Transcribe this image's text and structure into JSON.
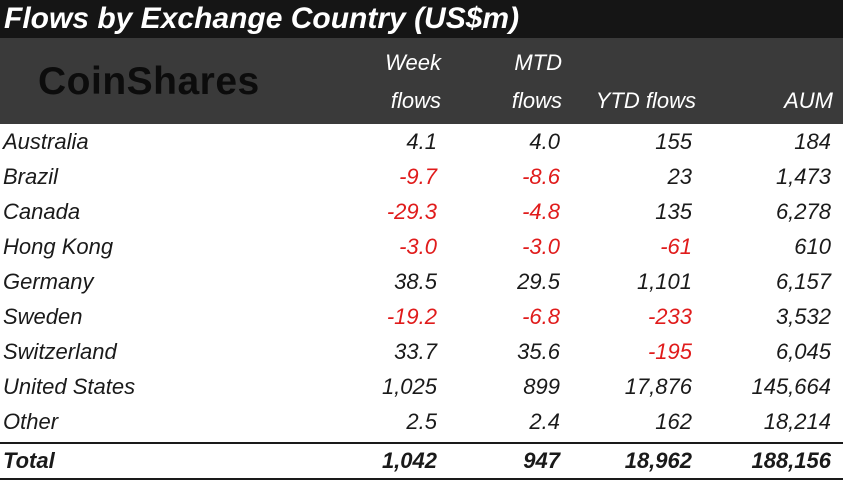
{
  "title": "Flows by Exchange Country (US$m)",
  "logo_text": "CoinShares",
  "colors": {
    "title_bg": "#151515",
    "header_bg": "#3a3a3a",
    "negative": "#e01b1b"
  },
  "headers": {
    "week_line1": "Week",
    "week_line2": "flows",
    "mtd_line1": "MTD",
    "mtd_line2": "flows",
    "ytd": "YTD flows",
    "aum": "AUM"
  },
  "rows": [
    {
      "country": "Australia",
      "week": "4.1",
      "mtd": "4.0",
      "ytd": "155",
      "aum": "184"
    },
    {
      "country": "Brazil",
      "week": "-9.7",
      "mtd": "-8.6",
      "ytd": "23",
      "aum": "1,473"
    },
    {
      "country": "Canada",
      "week": "-29.3",
      "mtd": "-4.8",
      "ytd": "135",
      "aum": "6,278"
    },
    {
      "country": "Hong Kong",
      "week": "-3.0",
      "mtd": "-3.0",
      "ytd": "-61",
      "aum": "610"
    },
    {
      "country": "Germany",
      "week": "38.5",
      "mtd": "29.5",
      "ytd": "1,101",
      "aum": "6,157"
    },
    {
      "country": "Sweden",
      "week": "-19.2",
      "mtd": "-6.8",
      "ytd": "-233",
      "aum": "3,532"
    },
    {
      "country": "Switzerland",
      "week": "33.7",
      "mtd": "35.6",
      "ytd": "-195",
      "aum": "6,045"
    },
    {
      "country": "United States",
      "week": "1,025",
      "mtd": "899",
      "ytd": "17,876",
      "aum": "145,664"
    },
    {
      "country": "Other",
      "week": "2.5",
      "mtd": "2.4",
      "ytd": "162",
      "aum": "18,214"
    }
  ],
  "total": {
    "label": "Total",
    "week": "1,042",
    "mtd": "947",
    "ytd": "18,962",
    "aum": "188,156"
  },
  "chart_data": {
    "type": "table",
    "title": "Flows by Exchange Country (US$m)",
    "columns": [
      "Week flows",
      "MTD flows",
      "YTD flows",
      "AUM"
    ],
    "categories": [
      "Australia",
      "Brazil",
      "Canada",
      "Hong Kong",
      "Germany",
      "Sweden",
      "Switzerland",
      "United States",
      "Other",
      "Total"
    ],
    "series": [
      {
        "name": "Week flows",
        "values": [
          4.1,
          -9.7,
          -29.3,
          -3.0,
          38.5,
          -19.2,
          33.7,
          1025,
          2.5,
          1042
        ]
      },
      {
        "name": "MTD flows",
        "values": [
          4.0,
          -8.6,
          -4.8,
          -3.0,
          29.5,
          -6.8,
          35.6,
          899,
          2.4,
          947
        ]
      },
      {
        "name": "YTD flows",
        "values": [
          155,
          23,
          135,
          -61,
          1101,
          -233,
          -195,
          17876,
          162,
          18962
        ]
      },
      {
        "name": "AUM",
        "values": [
          184,
          1473,
          6278,
          610,
          6157,
          3532,
          6045,
          145664,
          18214,
          188156
        ]
      }
    ]
  }
}
